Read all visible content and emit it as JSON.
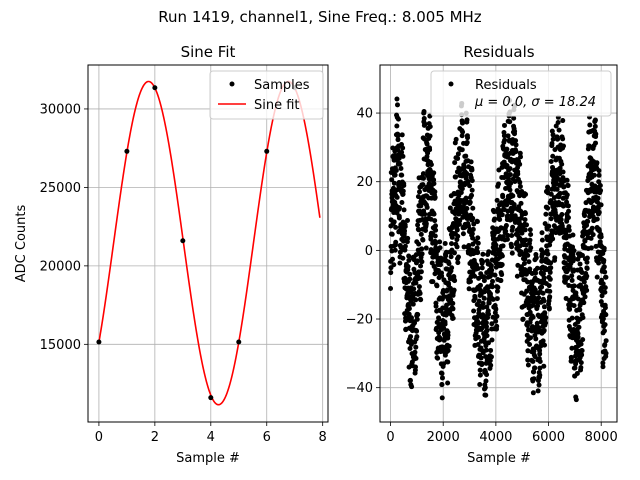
{
  "figure": {
    "suptitle": "Run 1419, channel1, Sine Freq.: 8.005 MHz"
  },
  "chart_data": [
    {
      "type": "line",
      "title": "Sine Fit",
      "xlabel": "Sample #",
      "ylabel": "ADC Counts",
      "xlim": [
        -0.39,
        8.19
      ],
      "ylim": [
        10050,
        32800
      ],
      "xticks": [
        0,
        2,
        4,
        6,
        8
      ],
      "yticks": [
        15000,
        20000,
        25000,
        30000
      ],
      "grid": true,
      "legend_position": "top-right",
      "series": [
        {
          "name": "Samples",
          "style": "points",
          "color": "#000000",
          "x": [
            0,
            1,
            2,
            3,
            4,
            5,
            6,
            7
          ],
          "y": [
            15150,
            27300,
            31350,
            21600,
            11600,
            15150,
            27300,
            31350
          ]
        },
        {
          "name": "Sine fit",
          "style": "line",
          "color": "#ff0000",
          "model": {
            "offset": 21450,
            "amplitude": 10300,
            "freq_cycles_per_sample": 0.2,
            "phase_rad": -0.66
          },
          "x_range": [
            0,
            7.9
          ]
        }
      ]
    },
    {
      "type": "scatter",
      "title": "Residuals",
      "xlabel": "Sample #",
      "xlim": [
        -400,
        8600
      ],
      "ylim": [
        -50,
        54
      ],
      "xticks": [
        0,
        2000,
        4000,
        6000,
        8000
      ],
      "yticks": [
        -40,
        -20,
        0,
        20,
        40
      ],
      "grid": true,
      "legend_position": "top-right",
      "legend_line1": "Residuals",
      "legend_line2": "μ = 0.0, σ = 18.24",
      "series": [
        {
          "name": "Residuals",
          "color": "#000000",
          "mean": 0.0,
          "std": 18.24,
          "n_points": 8192,
          "range": [
            -46,
            49
          ]
        }
      ]
    }
  ]
}
